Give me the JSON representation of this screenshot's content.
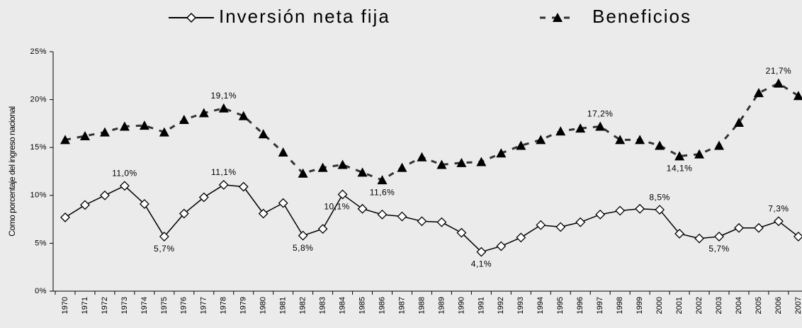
{
  "chart_data": {
    "type": "line",
    "y_label": "Como porcentaje del ingreso nacional",
    "categories": [
      "1970",
      "1971",
      "1972",
      "1973",
      "1974",
      "1975",
      "1976",
      "1977",
      "1978",
      "1979",
      "1980",
      "1981",
      "1982",
      "1983",
      "1984",
      "1985",
      "1986",
      "1987",
      "1988",
      "1989",
      "1990",
      "1991",
      "1992",
      "1993",
      "1994",
      "1995",
      "1996",
      "1997",
      "1998",
      "1999",
      "2000",
      "2001",
      "2002",
      "2003",
      "2004",
      "2005",
      "2006",
      "2007"
    ],
    "series": [
      {
        "name": "Inversión neta fija",
        "color": "#000000",
        "values": [
          7.7,
          9.0,
          10.0,
          11.0,
          9.1,
          5.7,
          8.1,
          9.8,
          11.1,
          10.9,
          8.1,
          9.2,
          5.8,
          6.5,
          10.1,
          8.6,
          8.0,
          7.8,
          7.3,
          7.2,
          6.1,
          4.1,
          4.7,
          5.6,
          6.9,
          6.7,
          7.2,
          8.0,
          8.4,
          8.6,
          8.5,
          6.0,
          5.5,
          5.7,
          6.6,
          6.6,
          7.3,
          5.7
        ],
        "value_labels": [
          null,
          null,
          null,
          "11,0%",
          null,
          "5,7%",
          null,
          null,
          "11,1%",
          null,
          null,
          null,
          "5,8%",
          null,
          "10,1%",
          null,
          null,
          null,
          null,
          null,
          null,
          "4,1%",
          null,
          null,
          null,
          null,
          null,
          null,
          null,
          null,
          "8,5%",
          null,
          null,
          "5,7%",
          null,
          null,
          "7,3%",
          null
        ]
      },
      {
        "name": "Beneficios",
        "color": "#333333",
        "values": [
          15.8,
          16.2,
          16.6,
          17.2,
          17.3,
          16.6,
          17.9,
          18.6,
          19.1,
          18.3,
          16.4,
          14.5,
          12.3,
          12.9,
          13.2,
          12.4,
          11.6,
          12.9,
          14.0,
          13.2,
          13.4,
          13.5,
          14.4,
          15.2,
          15.8,
          16.7,
          17.0,
          17.2,
          15.8,
          15.8,
          15.2,
          14.1,
          14.3,
          15.2,
          17.6,
          20.7,
          21.7,
          20.4
        ],
        "value_labels": [
          null,
          null,
          null,
          null,
          null,
          null,
          null,
          null,
          "19,1%",
          null,
          null,
          null,
          null,
          null,
          null,
          null,
          "11,6%",
          null,
          null,
          null,
          null,
          null,
          null,
          null,
          null,
          null,
          null,
          "17,2%",
          null,
          null,
          null,
          "14,1%",
          null,
          null,
          null,
          null,
          "21,7%",
          null
        ]
      }
    ],
    "ylim": [
      0,
      25
    ],
    "yticks": [
      {
        "value": 0,
        "label": "0%"
      },
      {
        "value": 5,
        "label": "5%"
      },
      {
        "value": 10,
        "label": "10%"
      },
      {
        "value": 15,
        "label": "15%"
      },
      {
        "value": 20,
        "label": "20%"
      },
      {
        "value": 25,
        "label": "25%"
      }
    ]
  }
}
